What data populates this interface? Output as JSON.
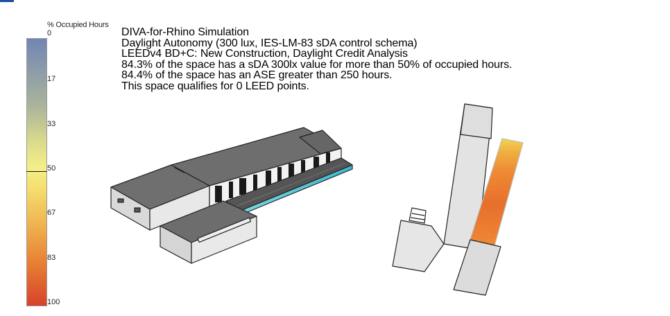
{
  "legend": {
    "title": "% Occupied Hours",
    "ticks": [
      "0",
      "17",
      "33",
      "50",
      "67",
      "83",
      "100"
    ],
    "colors": {
      "low": "#6f86b3",
      "mid": "#f4ee8a",
      "high": "#d6432a"
    }
  },
  "simulation_text": {
    "line1": "DIVA-for-Rhino Simulation",
    "line2": "Daylight Autonomy (300 lux, IES-LM-83 sDA control schema)",
    "line3": "LEEDv4 BD+C: New Construction, Daylight Credit Analysis",
    "line4": "84.3% of the space has a sDA 300lx value for more than 50% of occupied hours.",
    "line5": "84.4% of the space has an ASE greater than 250 hours.",
    "line6": "This space qualifies for 0 LEED points."
  },
  "viewport": {
    "perspective_model": "building-perspective-view",
    "plan_model": "building-plan-view",
    "heatmap_colors": [
      "#e8c84a",
      "#ef8a34",
      "#e46a2a"
    ]
  }
}
